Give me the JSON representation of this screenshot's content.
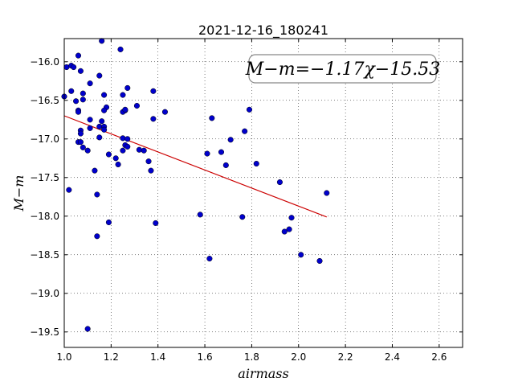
{
  "chart_data": {
    "type": "scatter",
    "title": "2021-12-16_180241",
    "xlabel": "airmass",
    "ylabel": "M−m",
    "xlim": [
      1.0,
      2.7
    ],
    "ylim": [
      -19.7,
      -15.7
    ],
    "y_inverted": true,
    "grid": true,
    "xticks": [
      "1.0",
      "1.2",
      "1.4",
      "1.6",
      "1.8",
      "2.0",
      "2.2",
      "2.4",
      "2.6"
    ],
    "yticks": [
      "−16.0",
      "−16.5",
      "−17.0",
      "−17.5",
      "−18.0",
      "−18.5",
      "−19.0",
      "−19.5"
    ],
    "annotation": "M−m=−1.17χ−15.53",
    "point_color": "#0000cc",
    "fit_color": "#cc0000",
    "fit": {
      "slope": -1.17,
      "intercept": -15.53,
      "x_range": [
        1.0,
        2.12
      ]
    },
    "points": [
      {
        "x": 1.01,
        "y": -16.07
      },
      {
        "x": 1.03,
        "y": -16.05
      },
      {
        "x": 1.04,
        "y": -16.07
      },
      {
        "x": 1.0,
        "y": -16.45
      },
      {
        "x": 1.03,
        "y": -16.38
      },
      {
        "x": 1.05,
        "y": -16.51
      },
      {
        "x": 1.06,
        "y": -15.92
      },
      {
        "x": 1.07,
        "y": -16.12
      },
      {
        "x": 1.06,
        "y": -16.63
      },
      {
        "x": 1.06,
        "y": -16.65
      },
      {
        "x": 1.08,
        "y": -16.41
      },
      {
        "x": 1.08,
        "y": -16.49
      },
      {
        "x": 1.11,
        "y": -16.28
      },
      {
        "x": 1.07,
        "y": -16.89
      },
      {
        "x": 1.07,
        "y": -16.93
      },
      {
        "x": 1.06,
        "y": -17.04
      },
      {
        "x": 1.07,
        "y": -17.04
      },
      {
        "x": 1.08,
        "y": -17.11
      },
      {
        "x": 1.1,
        "y": -17.15
      },
      {
        "x": 1.11,
        "y": -16.75
      },
      {
        "x": 1.11,
        "y": -16.86
      },
      {
        "x": 1.13,
        "y": -17.41
      },
      {
        "x": 1.14,
        "y": -17.72
      },
      {
        "x": 1.02,
        "y": -17.66
      },
      {
        "x": 1.14,
        "y": -18.26
      },
      {
        "x": 1.1,
        "y": -19.46
      },
      {
        "x": 1.16,
        "y": -15.73
      },
      {
        "x": 1.15,
        "y": -16.18
      },
      {
        "x": 1.17,
        "y": -16.43
      },
      {
        "x": 1.18,
        "y": -16.59
      },
      {
        "x": 1.17,
        "y": -16.63
      },
      {
        "x": 1.16,
        "y": -16.77
      },
      {
        "x": 1.15,
        "y": -16.84
      },
      {
        "x": 1.17,
        "y": -16.84
      },
      {
        "x": 1.17,
        "y": -16.88
      },
      {
        "x": 1.15,
        "y": -16.98
      },
      {
        "x": 1.19,
        "y": -17.2
      },
      {
        "x": 1.19,
        "y": -18.08
      },
      {
        "x": 1.22,
        "y": -17.25
      },
      {
        "x": 1.23,
        "y": -17.33
      },
      {
        "x": 1.24,
        "y": -15.84
      },
      {
        "x": 1.25,
        "y": -16.43
      },
      {
        "x": 1.26,
        "y": -16.63
      },
      {
        "x": 1.25,
        "y": -16.65
      },
      {
        "x": 1.26,
        "y": -16.62
      },
      {
        "x": 1.27,
        "y": -16.34
      },
      {
        "x": 1.25,
        "y": -16.99
      },
      {
        "x": 1.27,
        "y": -17.0
      },
      {
        "x": 1.26,
        "y": -17.08
      },
      {
        "x": 1.27,
        "y": -17.1
      },
      {
        "x": 1.25,
        "y": -17.15
      },
      {
        "x": 1.31,
        "y": -16.57
      },
      {
        "x": 1.32,
        "y": -17.14
      },
      {
        "x": 1.34,
        "y": -17.15
      },
      {
        "x": 1.36,
        "y": -17.29
      },
      {
        "x": 1.37,
        "y": -17.41
      },
      {
        "x": 1.38,
        "y": -16.74
      },
      {
        "x": 1.38,
        "y": -16.38
      },
      {
        "x": 1.39,
        "y": -18.09
      },
      {
        "x": 1.43,
        "y": -16.65
      },
      {
        "x": 1.58,
        "y": -17.98
      },
      {
        "x": 1.61,
        "y": -17.19
      },
      {
        "x": 1.62,
        "y": -18.55
      },
      {
        "x": 1.63,
        "y": -16.73
      },
      {
        "x": 1.67,
        "y": -17.17
      },
      {
        "x": 1.69,
        "y": -17.34
      },
      {
        "x": 1.71,
        "y": -17.01
      },
      {
        "x": 1.76,
        "y": -18.01
      },
      {
        "x": 1.77,
        "y": -16.9
      },
      {
        "x": 1.79,
        "y": -16.62
      },
      {
        "x": 1.82,
        "y": -17.32
      },
      {
        "x": 1.92,
        "y": -17.56
      },
      {
        "x": 1.94,
        "y": -18.2
      },
      {
        "x": 1.96,
        "y": -18.17
      },
      {
        "x": 1.97,
        "y": -18.02
      },
      {
        "x": 2.01,
        "y": -18.5
      },
      {
        "x": 2.09,
        "y": -18.58
      },
      {
        "x": 2.12,
        "y": -17.7
      }
    ]
  }
}
